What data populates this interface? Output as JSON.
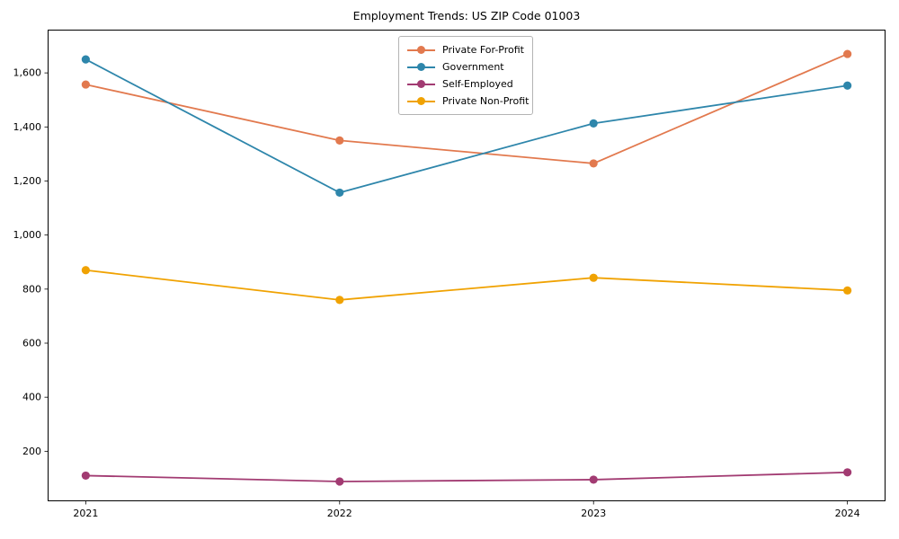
{
  "figure": {
    "title": "Employment Trends: US ZIP Code 01003"
  },
  "chart_data": {
    "type": "line",
    "title": "Employment Trends: US ZIP Code 01003",
    "x": [
      2021,
      2022,
      2023,
      2024
    ],
    "x_tick_labels": [
      "2021",
      "2022",
      "2023",
      "2024"
    ],
    "series": [
      {
        "name": "Private For-Profit",
        "color": "#E2794E",
        "values": [
          1557,
          1350,
          1265,
          1670
        ]
      },
      {
        "name": "Government",
        "color": "#2E86AB",
        "values": [
          1650,
          1157,
          1413,
          1553
        ]
      },
      {
        "name": "Self-Employed",
        "color": "#A23B72",
        "values": [
          110,
          88,
          95,
          122
        ]
      },
      {
        "name": "Private Non-Profit",
        "color": "#F0A202",
        "values": [
          870,
          760,
          842,
          795
        ]
      }
    ],
    "yticks": [
      200,
      400,
      600,
      800,
      1000,
      1200,
      1400,
      1600
    ],
    "ytick_labels": [
      "200",
      "400",
      "600",
      "800",
      "1,000",
      "1,200",
      "1,400",
      "1,600"
    ],
    "ylim": [
      15,
      1760
    ],
    "xlim": [
      2020.85,
      2024.15
    ],
    "grid": false,
    "legend_position": "upper center inside",
    "marker": "circle",
    "xlabel": "",
    "ylabel": ""
  }
}
